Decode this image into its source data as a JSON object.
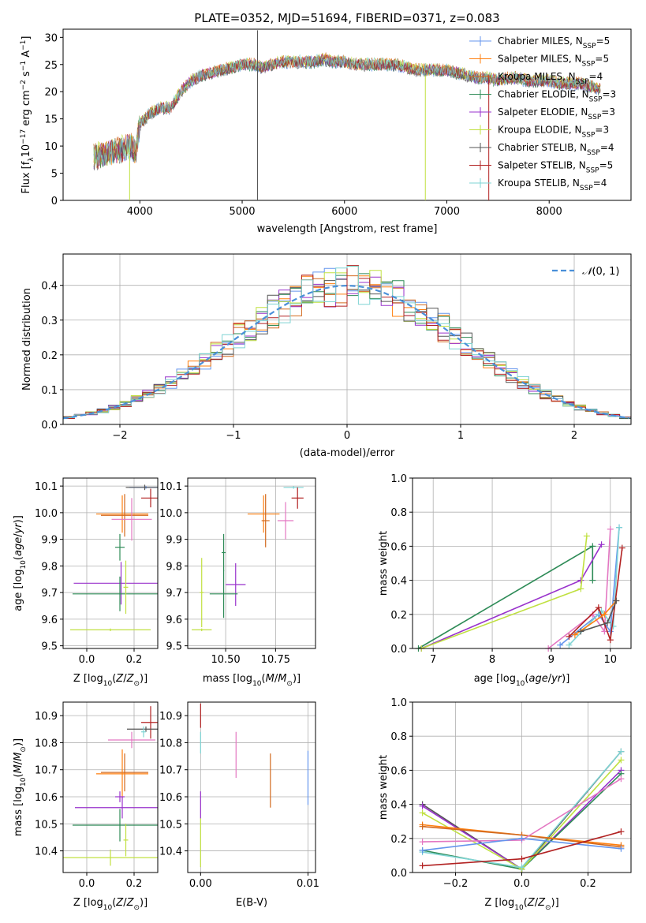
{
  "colors": {
    "Chabrier MILES": "#6495ed",
    "Salpeter MILES": "#ff7f0e",
    "Kroupa MILES": "#d2691e",
    "Chabrier ELODIE": "#2e8b57",
    "Salpeter ELODIE": "#9932cc",
    "Kroupa ELODIE": "#c0e040",
    "Chabrier STELIB": "#555555",
    "Salpeter STELIB": "#b22222",
    "Kroupa STELIB": "#7fd4d4",
    "extra pink": "#e377c2"
  },
  "chart_data": [
    {
      "id": "spectrum",
      "type": "line",
      "title": "PLATE=0352, MJD=51694, FIBERID=0371, z=0.083",
      "xlabel": "wavelength [Angstrom, rest frame]",
      "ylabel": "Flux [f_λ10^-17 erg cm^-2 s^-1 A^-1]",
      "xlim": [
        3250,
        8800
      ],
      "ylim": [
        0,
        31.5
      ],
      "xticks": [
        4000,
        5000,
        6000,
        7000,
        8000
      ],
      "yticks": [
        0,
        5,
        10,
        15,
        20,
        25,
        30
      ],
      "legend_position": "top-right",
      "legend": [
        {
          "name": "Chabrier MILES, N_SSP=5",
          "color": "#6495ed"
        },
        {
          "name": "Salpeter MILES, N_SSP=5",
          "color": "#ff7f0e"
        },
        {
          "name": "Kroupa MILES, N_SSP=4",
          "color": "#d2691e"
        },
        {
          "name": "Chabrier ELODIE, N_SSP=3",
          "color": "#2e8b57"
        },
        {
          "name": "Salpeter ELODIE, N_SSP=3",
          "color": "#9932cc"
        },
        {
          "name": "Kroupa ELODIE, N_SSP=3",
          "color": "#c0e040"
        },
        {
          "name": "Chabrier STELIB, N_SSP=4",
          "color": "#555555"
        },
        {
          "name": "Salpeter STELIB, N_SSP=5",
          "color": "#b22222"
        },
        {
          "name": "Kroupa STELIB, N_SSP=4",
          "color": "#7fd4d4"
        }
      ],
      "continuum": [
        [
          3550,
          8
        ],
        [
          3650,
          8.5
        ],
        [
          3750,
          9
        ],
        [
          3850,
          9.5
        ],
        [
          3920,
          10
        ],
        [
          3960,
          9
        ],
        [
          4000,
          14
        ],
        [
          4100,
          16
        ],
        [
          4200,
          17
        ],
        [
          4300,
          17
        ],
        [
          4400,
          20
        ],
        [
          4500,
          22
        ],
        [
          4600,
          23
        ],
        [
          4700,
          23.5
        ],
        [
          4800,
          24
        ],
        [
          4900,
          24.5
        ],
        [
          5000,
          25
        ],
        [
          5100,
          25
        ],
        [
          5200,
          24.5
        ],
        [
          5300,
          25
        ],
        [
          5400,
          25.5
        ],
        [
          5500,
          25.5
        ],
        [
          5600,
          25.5
        ],
        [
          5700,
          25.5
        ],
        [
          5800,
          26
        ],
        [
          5900,
          25.5
        ],
        [
          6000,
          25.5
        ],
        [
          6100,
          25
        ],
        [
          6200,
          25
        ],
        [
          6300,
          25
        ],
        [
          6400,
          25
        ],
        [
          6500,
          25
        ],
        [
          6600,
          24.5
        ],
        [
          6700,
          24
        ],
        [
          6800,
          24
        ],
        [
          6900,
          24
        ],
        [
          7000,
          24
        ],
        [
          7100,
          23.5
        ],
        [
          7200,
          23
        ],
        [
          7300,
          22.5
        ],
        [
          7400,
          22.5
        ],
        [
          7500,
          22
        ],
        [
          7600,
          22.5
        ],
        [
          7700,
          22.5
        ],
        [
          7800,
          22
        ],
        [
          7900,
          22
        ],
        [
          8000,
          22
        ],
        [
          8100,
          21.5
        ],
        [
          8200,
          21.5
        ],
        [
          8300,
          21.5
        ],
        [
          8400,
          21
        ],
        [
          8500,
          20.5
        ]
      ],
      "spikes": [
        {
          "x": 5150,
          "y0": 0,
          "y1": 31.3,
          "color": "#555555"
        },
        {
          "x": 3900,
          "y0": 0,
          "y1": 8,
          "color": "#c0e040"
        },
        {
          "x": 6790,
          "y0": 0,
          "y1": 23,
          "color": "#c0e040"
        },
        {
          "x": 7410,
          "y0": 0,
          "y1": 23,
          "color": "#b22222"
        }
      ]
    },
    {
      "id": "residuals",
      "type": "histogram",
      "xlabel": "(data-model)/error",
      "ylabel": "Normed distribution",
      "xlim": [
        -2.5,
        2.5
      ],
      "ylim": [
        0,
        0.49
      ],
      "xticks": [
        -2,
        -1,
        0,
        1,
        2
      ],
      "yticks": [
        0.0,
        0.1,
        0.2,
        0.3,
        0.4
      ],
      "legend_position": "top-right",
      "legend": [
        {
          "name": "N(0,1)",
          "color": "#4a90d9",
          "style": "dashed"
        }
      ],
      "bin_width": 0.1,
      "series_colors": [
        "#6495ed",
        "#ff7f0e",
        "#d2691e",
        "#2e8b57",
        "#9932cc",
        "#c0e040",
        "#555555",
        "#b22222",
        "#7fd4d4"
      ]
    },
    {
      "id": "age-vs-Z",
      "type": "errorbar",
      "xlabel": "Z [log10(Z/Z⊙)]",
      "ylabel": "age [log10(age/yr)]",
      "xlim": [
        -0.1,
        0.3
      ],
      "ylim": [
        9.49,
        10.13
      ],
      "xticks": [
        0.0,
        0.2
      ],
      "yticks": [
        9.5,
        9.6,
        9.7,
        9.8,
        9.9,
        10.0,
        10.1
      ],
      "points": [
        {
          "x": 0.25,
          "xerr": 0.07,
          "y": 10.095,
          "yerr": 0.005,
          "color": "#6495ed"
        },
        {
          "x": 0.245,
          "xerr": 0.08,
          "y": 10.095,
          "yerr": 0.01,
          "color": "#555555"
        },
        {
          "x": 0.27,
          "xerr": 0.04,
          "y": 10.055,
          "yerr": 0.035,
          "color": "#b22222"
        },
        {
          "x": 0.15,
          "xerr": 0.11,
          "y": 9.995,
          "yerr": 0.07,
          "color": "#ff7f0e"
        },
        {
          "x": 0.16,
          "xerr": 0.1,
          "y": 9.99,
          "yerr": 0.08,
          "color": "#d2691e"
        },
        {
          "x": 0.19,
          "xerr": 0.085,
          "y": 9.975,
          "yerr": 0.08,
          "color": "#e377c2"
        },
        {
          "x": 0.14,
          "xerr": 0.02,
          "y": 9.87,
          "yerr": 0.05,
          "color": "#2e8b57"
        },
        {
          "x": 0.145,
          "xerr": 0.2,
          "y": 9.735,
          "yerr": 0.08,
          "color": "#9932cc"
        },
        {
          "x": 0.14,
          "xerr": 0.2,
          "y": 9.695,
          "yerr": 0.065,
          "color": "#2e8b57"
        },
        {
          "x": 0.165,
          "xerr": 0.01,
          "y": 9.72,
          "yerr": 0.1,
          "color": "#c0e040"
        },
        {
          "x": 0.1,
          "xerr": 0.17,
          "y": 9.56,
          "yerr": 0.005,
          "color": "#c0e040"
        }
      ]
    },
    {
      "id": "age-vs-mass",
      "type": "errorbar",
      "xlabel": "mass [log10(M/M⊙)]",
      "ylabel": "",
      "xlim": [
        10.31,
        10.95
      ],
      "ylim": [
        9.49,
        10.13
      ],
      "xticks": [
        10.5,
        10.75
      ],
      "yticks": [
        9.5,
        9.6,
        9.7,
        9.8,
        9.9,
        10.0,
        10.1
      ],
      "points": [
        {
          "x": 10.84,
          "xerr": 0.05,
          "y": 10.095,
          "yerr": 0.005,
          "color": "#7fd4d4"
        },
        {
          "x": 10.86,
          "xerr": 0.03,
          "y": 10.055,
          "yerr": 0.04,
          "color": "#b22222"
        },
        {
          "x": 10.69,
          "xerr": 0.08,
          "y": 9.995,
          "yerr": 0.07,
          "color": "#ff7f0e"
        },
        {
          "x": 10.7,
          "xerr": 0.02,
          "y": 9.97,
          "yerr": 0.1,
          "color": "#d2691e"
        },
        {
          "x": 10.8,
          "xerr": 0.04,
          "y": 9.97,
          "yerr": 0.07,
          "color": "#e377c2"
        },
        {
          "x": 10.49,
          "xerr": 0.01,
          "y": 9.85,
          "yerr": 0.07,
          "color": "#2e8b57"
        },
        {
          "x": 10.55,
          "xerr": 0.05,
          "y": 9.73,
          "yerr": 0.08,
          "color": "#9932cc"
        },
        {
          "x": 10.49,
          "xerr": 0.07,
          "y": 9.695,
          "yerr": 0.09,
          "color": "#2e8b57"
        },
        {
          "x": 10.38,
          "xerr": 0.05,
          "y": 9.56,
          "yerr": 0.005,
          "color": "#c0e040"
        },
        {
          "x": 10.38,
          "xerr": 0.01,
          "y": 9.7,
          "yerr": 0.13,
          "color": "#c0e040"
        }
      ]
    },
    {
      "id": "weight-vs-age",
      "type": "line",
      "xlabel": "age [log10(age/yr)]",
      "ylabel": "mass weight",
      "xlim": [
        6.65,
        10.35
      ],
      "ylim": [
        0,
        1
      ],
      "xticks": [
        7,
        8,
        9,
        10
      ],
      "yticks": [
        0.0,
        0.2,
        0.4,
        0.6,
        0.8,
        1.0
      ],
      "series": [
        {
          "color": "#2e8b57",
          "points": [
            [
              6.75,
              0
            ],
            [
              9.7,
              0.6
            ],
            [
              9.7,
              0.4
            ]
          ]
        },
        {
          "color": "#9932cc",
          "points": [
            [
              6.8,
              0
            ],
            [
              9.5,
              0.4
            ],
            [
              9.85,
              0.61
            ]
          ]
        },
        {
          "color": "#c0e040",
          "points": [
            [
              6.8,
              0
            ],
            [
              9.5,
              0.35
            ],
            [
              9.6,
              0.66
            ]
          ]
        },
        {
          "color": "#e377c2",
          "points": [
            [
              8.95,
              0
            ],
            [
              9.7,
              0.2
            ],
            [
              9.9,
              0.1
            ],
            [
              10.0,
              0.7
            ]
          ]
        },
        {
          "color": "#6495ed",
          "points": [
            [
              9.15,
              0.02
            ],
            [
              9.8,
              0.2
            ],
            [
              10.0,
              0.1
            ],
            [
              10.15,
              0.71
            ]
          ]
        },
        {
          "color": "#7fd4d4",
          "points": [
            [
              9.3,
              0.02
            ],
            [
              9.85,
              0.22
            ],
            [
              10.05,
              0.13
            ],
            [
              10.15,
              0.71
            ]
          ]
        },
        {
          "color": "#b22222",
          "points": [
            [
              9.3,
              0.07
            ],
            [
              9.8,
              0.24
            ],
            [
              10.0,
              0.05
            ],
            [
              10.2,
              0.59
            ]
          ]
        },
        {
          "color": "#ff7f0e",
          "points": [
            [
              9.4,
              0.08
            ],
            [
              9.9,
              0.2
            ],
            [
              10.1,
              0.28
            ]
          ]
        },
        {
          "color": "#555555",
          "points": [
            [
              9.5,
              0.1
            ],
            [
              9.95,
              0.15
            ],
            [
              10.1,
              0.28
            ]
          ]
        }
      ]
    },
    {
      "id": "mass-vs-Z",
      "type": "errorbar",
      "xlabel": "Z [log10(Z/Z⊙)]",
      "ylabel": "mass [log10(M/M⊙)]",
      "xlim": [
        -0.1,
        0.3
      ],
      "ylim": [
        10.32,
        10.95
      ],
      "xticks": [
        0.0,
        0.2
      ],
      "yticks": [
        10.4,
        10.5,
        10.6,
        10.7,
        10.8,
        10.9
      ],
      "points": [
        {
          "x": 0.27,
          "xerr": 0.04,
          "y": 10.875,
          "yerr": 0.06,
          "color": "#b22222"
        },
        {
          "x": 0.25,
          "xerr": 0.08,
          "y": 10.85,
          "yerr": 0.01,
          "color": "#555555"
        },
        {
          "x": 0.24,
          "xerr": 0.01,
          "y": 10.84,
          "yerr": 0.02,
          "color": "#7fd4d4"
        },
        {
          "x": 0.19,
          "xerr": 0.1,
          "y": 10.81,
          "yerr": 0.03,
          "color": "#e377c2"
        },
        {
          "x": 0.16,
          "xerr": 0.1,
          "y": 10.69,
          "yerr": 0.07,
          "color": "#d2691e"
        },
        {
          "x": 0.15,
          "xerr": 0.11,
          "y": 10.685,
          "yerr": 0.09,
          "color": "#ff7f0e"
        },
        {
          "x": 0.14,
          "xerr": 0.02,
          "y": 10.6,
          "yerr": 0.02,
          "color": "#9932cc"
        },
        {
          "x": 0.15,
          "xerr": 0.2,
          "y": 10.56,
          "yerr": 0.04,
          "color": "#9932cc"
        },
        {
          "x": 0.14,
          "xerr": 0.2,
          "y": 10.495,
          "yerr": 0.06,
          "color": "#2e8b57"
        },
        {
          "x": 0.1,
          "xerr": 0.2,
          "y": 10.375,
          "yerr": 0.03,
          "color": "#c0e040"
        },
        {
          "x": 0.165,
          "xerr": 0.01,
          "y": 10.44,
          "yerr": 0.06,
          "color": "#c0e040"
        }
      ]
    },
    {
      "id": "mass-vs-EBV",
      "type": "errorbar",
      "xlabel": "E(B-V)",
      "ylabel": "",
      "xlim": [
        -0.0012,
        0.0107
      ],
      "ylim": [
        10.32,
        10.95
      ],
      "xticks": [
        0.0,
        0.01
      ],
      "xticklabels": [
        "0.00",
        "0.01"
      ],
      "yticks": [
        10.4,
        10.5,
        10.6,
        10.7,
        10.8,
        10.9
      ],
      "points": [
        {
          "x": 0.0,
          "y": 10.9,
          "yerr": 0.045,
          "color": "#b22222"
        },
        {
          "x": 0.0,
          "y": 10.8,
          "yerr": 0.04,
          "color": "#7fd4d4"
        },
        {
          "x": 0.0,
          "y": 10.57,
          "yerr": 0.05,
          "color": "#9932cc"
        },
        {
          "x": 0.0,
          "y": 10.43,
          "yerr": 0.09,
          "color": "#c0e040"
        },
        {
          "x": 0.0033,
          "y": 10.755,
          "yerr": 0.085,
          "color": "#e377c2"
        },
        {
          "x": 0.0065,
          "y": 10.66,
          "yerr": 0.1,
          "color": "#d2691e"
        },
        {
          "x": 0.01,
          "y": 10.67,
          "yerr": 0.1,
          "color": "#6495ed"
        }
      ]
    },
    {
      "id": "weight-vs-Z",
      "type": "line",
      "xlabel": "Z [log10(Z/Z⊙)]",
      "ylabel": "mass weight",
      "xlim": [
        -0.33,
        0.33
      ],
      "ylim": [
        0,
        1
      ],
      "xticks": [
        -0.2,
        0.0,
        0.2
      ],
      "yticks": [
        0.0,
        0.2,
        0.4,
        0.6,
        0.8,
        1.0
      ],
      "series": [
        {
          "color": "#555555",
          "points": [
            [
              -0.3,
              0.4
            ],
            [
              0.0,
              0.02
            ],
            [
              0.3,
              0.71
            ]
          ]
        },
        {
          "color": "#9932cc",
          "points": [
            [
              -0.3,
              0.39
            ],
            [
              0.0,
              0.02
            ],
            [
              0.3,
              0.6
            ]
          ]
        },
        {
          "color": "#2e8b57",
          "points": [
            [
              -0.3,
              0.13
            ],
            [
              0.0,
              0.02
            ],
            [
              0.3,
              0.58
            ]
          ]
        },
        {
          "color": "#c0e040",
          "points": [
            [
              -0.3,
              0.35
            ],
            [
              0.0,
              0.02
            ],
            [
              0.3,
              0.66
            ]
          ]
        },
        {
          "color": "#7fd4d4",
          "points": [
            [
              -0.3,
              0.12
            ],
            [
              0.0,
              0.03
            ],
            [
              0.3,
              0.71
            ]
          ]
        },
        {
          "color": "#ff7f0e",
          "points": [
            [
              -0.3,
              0.28
            ],
            [
              0.0,
              0.22
            ],
            [
              0.3,
              0.16
            ]
          ]
        },
        {
          "color": "#d2691e",
          "points": [
            [
              -0.3,
              0.27
            ],
            [
              0.0,
              0.22
            ],
            [
              0.3,
              0.15
            ]
          ]
        },
        {
          "color": "#e377c2",
          "points": [
            [
              -0.3,
              0.18
            ],
            [
              0.0,
              0.19
            ],
            [
              0.3,
              0.55
            ]
          ]
        },
        {
          "color": "#6495ed",
          "points": [
            [
              -0.3,
              0.13
            ],
            [
              0.0,
              0.2
            ],
            [
              0.3,
              0.14
            ]
          ]
        },
        {
          "color": "#b22222",
          "points": [
            [
              -0.3,
              0.04
            ],
            [
              0.0,
              0.08
            ],
            [
              0.3,
              0.24
            ]
          ]
        }
      ]
    }
  ]
}
